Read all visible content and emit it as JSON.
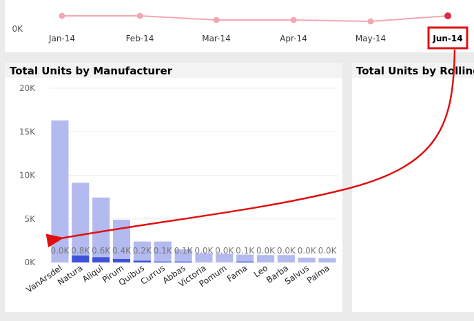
{
  "top_chart": {
    "y_tick": "0K",
    "months": [
      "Jan-14",
      "Feb-14",
      "Mar-14",
      "Apr-14",
      "May-14",
      "Jun-14"
    ],
    "highlighted_month": "Jun-14",
    "line_color": "#f4a6b3",
    "highlight_point_color": "#e0294a"
  },
  "left_panel": {
    "title": "Total Units by Manufacturer"
  },
  "right_panel": {
    "title": "Total Units by Rolling"
  },
  "chart_data": {
    "type": "bar",
    "categories": [
      "VanArsdel",
      "Natura",
      "Aliqui",
      "Pirum",
      "Quibus",
      "Currus",
      "Abbas",
      "Victoria",
      "Pomum",
      "Fama",
      "Leo",
      "Barba",
      "Salvus",
      "Palma"
    ],
    "series": [
      {
        "values": [
          16300,
          9150,
          7450,
          4900,
          2400,
          2400,
          1500,
          1050,
          1000,
          900,
          850,
          850,
          550,
          500
        ]
      },
      {
        "values": [
          0,
          800,
          600,
          400,
          200,
          100,
          100,
          0,
          0,
          100,
          0,
          0,
          0,
          0
        ]
      }
    ],
    "data_labels": [
      "0.0K",
      "0.8K",
      "0.6K",
      "0.4K",
      "0.2K",
      "0.1K",
      "0.1K",
      "0.0K",
      "0.0K",
      "0.1K",
      "0.0K",
      "0.0K",
      "0.0K",
      "0.0K"
    ],
    "y_ticks": [
      "0K",
      "5K",
      "10K",
      "15K",
      "20K"
    ],
    "ylim": [
      0,
      20000
    ],
    "colors": {
      "total": "#b3baf0",
      "highlight": "#3f51d9"
    }
  },
  "annotation": {
    "arrow_color": "#e01010"
  }
}
